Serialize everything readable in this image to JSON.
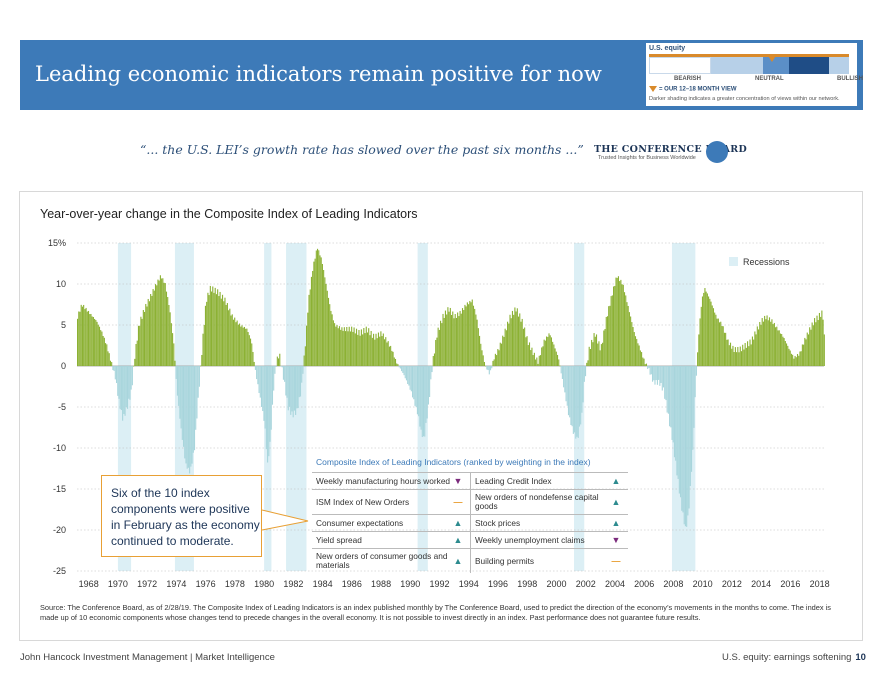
{
  "header": {
    "title": "Leading economic indicators remain positive for now",
    "equity_view": {
      "label": "U.S. equity",
      "bearish": "BEARISH",
      "neutral": "NEUTRAL",
      "bullish": "BULLISH",
      "view_note": "= OUR 12–18 MONTH VIEW",
      "shading_note": "Darker shading indicates a greater concentration of views within our network."
    }
  },
  "quote": "“... the U.S. LEI’s growth rate has slowed over the past six months ...”",
  "logo": {
    "name": "THE CONFERENCE BOARD",
    "tagline": "Trusted Insights for Business Worldwide"
  },
  "chart_data": {
    "type": "bar",
    "title": "Year-over-year change in the Composite Index of Leading Indicators",
    "ylim": [
      -25,
      15
    ],
    "yticks": [
      "15%",
      "10",
      "5",
      "0",
      "-5",
      "-10",
      "-15",
      "-20",
      "-25"
    ],
    "xticks": [
      "1968",
      "1970",
      "1972",
      "1974",
      "1976",
      "1978",
      "1980",
      "1982",
      "1984",
      "1986",
      "1988",
      "1990",
      "1992",
      "1994",
      "1996",
      "1998",
      "2000",
      "2002",
      "2004",
      "2006",
      "2008",
      "2010",
      "2012",
      "2014",
      "2016",
      "2018"
    ],
    "xlim": [
      1967.2,
      2018.3
    ],
    "grid": "horizontal dotted",
    "legend": {
      "label": "Recessions",
      "placement": "top-right"
    },
    "recessions": [
      [
        1970.0,
        1970.9
      ],
      [
        1973.9,
        1975.2
      ],
      [
        1980.0,
        1980.5
      ],
      [
        1981.5,
        1982.9
      ],
      [
        1990.5,
        1991.2
      ],
      [
        2001.2,
        2001.9
      ],
      [
        2007.9,
        2009.5
      ]
    ],
    "series": [
      {
        "colors": {
          "positive": "#8cb134",
          "negative": "#a8d5dc"
        },
        "points": [
          [
            1967.2,
            6
          ],
          [
            1967.5,
            7.5
          ],
          [
            1968.0,
            6.5
          ],
          [
            1968.5,
            5.5
          ],
          [
            1968.9,
            4
          ],
          [
            1969.2,
            2.5
          ],
          [
            1969.5,
            0.5
          ],
          [
            1969.8,
            -1.5
          ],
          [
            1970.0,
            -4
          ],
          [
            1970.3,
            -6.5
          ],
          [
            1970.6,
            -5
          ],
          [
            1970.9,
            -3
          ],
          [
            1971.1,
            1
          ],
          [
            1971.4,
            5
          ],
          [
            1971.8,
            7
          ],
          [
            1972.2,
            8.5
          ],
          [
            1972.6,
            10
          ],
          [
            1972.9,
            11
          ],
          [
            1973.2,
            10
          ],
          [
            1973.5,
            7
          ],
          [
            1973.8,
            2.5
          ],
          [
            1974.0,
            -3
          ],
          [
            1974.3,
            -8
          ],
          [
            1974.6,
            -12
          ],
          [
            1974.9,
            -13
          ],
          [
            1975.2,
            -10
          ],
          [
            1975.5,
            -3
          ],
          [
            1975.8,
            4
          ],
          [
            1976.0,
            8
          ],
          [
            1976.3,
            9.5
          ],
          [
            1976.8,
            9
          ],
          [
            1977.3,
            8
          ],
          [
            1977.8,
            6
          ],
          [
            1978.3,
            5
          ],
          [
            1978.8,
            4.5
          ],
          [
            1979.1,
            3
          ],
          [
            1979.4,
            -1
          ],
          [
            1979.7,
            -4
          ],
          [
            1980.0,
            -7
          ],
          [
            1980.2,
            -12
          ],
          [
            1980.4,
            -9
          ],
          [
            1980.6,
            -3
          ],
          [
            1980.8,
            0.5
          ],
          [
            1981.0,
            1.5
          ],
          [
            1981.3,
            -1.5
          ],
          [
            1981.6,
            -5
          ],
          [
            1981.9,
            -6
          ],
          [
            1982.2,
            -5.5
          ],
          [
            1982.5,
            -3
          ],
          [
            1982.8,
            3
          ],
          [
            1983.0,
            8
          ],
          [
            1983.3,
            12
          ],
          [
            1983.6,
            14.5
          ],
          [
            1983.9,
            13
          ],
          [
            1984.2,
            10
          ],
          [
            1984.5,
            7
          ],
          [
            1984.8,
            5
          ],
          [
            1985.3,
            4.5
          ],
          [
            1986.0,
            4.5
          ],
          [
            1986.5,
            4
          ],
          [
            1987.0,
            4.5
          ],
          [
            1987.5,
            3.5
          ],
          [
            1988.0,
            4
          ],
          [
            1988.4,
            3
          ],
          [
            1988.7,
            2
          ],
          [
            1989.0,
            0.5
          ],
          [
            1989.5,
            -1
          ],
          [
            1990.0,
            -3
          ],
          [
            1990.5,
            -6
          ],
          [
            1990.7,
            -8
          ],
          [
            1990.9,
            -9
          ],
          [
            1991.2,
            -5
          ],
          [
            1991.5,
            0.5
          ],
          [
            1991.8,
            4
          ],
          [
            1992.2,
            6
          ],
          [
            1992.6,
            7
          ],
          [
            1993.0,
            6
          ],
          [
            1993.4,
            6.5
          ],
          [
            1993.8,
            7.5
          ],
          [
            1994.2,
            8
          ],
          [
            1994.5,
            6
          ],
          [
            1994.8,
            2.5
          ],
          [
            1995.1,
            0
          ],
          [
            1995.4,
            -1
          ],
          [
            1995.7,
            1
          ],
          [
            1996.0,
            2
          ],
          [
            1996.4,
            4
          ],
          [
            1996.8,
            6
          ],
          [
            1997.2,
            7
          ],
          [
            1997.6,
            5.5
          ],
          [
            1998.0,
            3
          ],
          [
            1998.4,
            1.5
          ],
          [
            1998.7,
            0.5
          ],
          [
            1999.1,
            3
          ],
          [
            1999.5,
            4
          ],
          [
            1999.8,
            2.5
          ],
          [
            2000.1,
            1
          ],
          [
            2000.4,
            -2
          ],
          [
            2000.8,
            -6
          ],
          [
            2001.1,
            -8
          ],
          [
            2001.4,
            -9
          ],
          [
            2001.7,
            -6
          ],
          [
            2001.9,
            -1.5
          ],
          [
            2002.2,
            2
          ],
          [
            2002.6,
            4
          ],
          [
            2003.0,
            2
          ],
          [
            2003.4,
            6
          ],
          [
            2003.8,
            9
          ],
          [
            2004.1,
            11
          ],
          [
            2004.5,
            10
          ],
          [
            2004.9,
            7
          ],
          [
            2005.3,
            4
          ],
          [
            2005.7,
            2
          ],
          [
            2006.0,
            0.5
          ],
          [
            2006.3,
            -0.5
          ],
          [
            2006.6,
            -2
          ],
          [
            2007.0,
            -2
          ],
          [
            2007.3,
            -3
          ],
          [
            2007.6,
            -6
          ],
          [
            2007.9,
            -9
          ],
          [
            2008.2,
            -13
          ],
          [
            2008.5,
            -17
          ],
          [
            2008.8,
            -20
          ],
          [
            2009.0,
            -18
          ],
          [
            2009.3,
            -10
          ],
          [
            2009.5,
            -2
          ],
          [
            2009.7,
            4
          ],
          [
            2009.9,
            8
          ],
          [
            2010.1,
            9.5
          ],
          [
            2010.5,
            8
          ],
          [
            2010.9,
            6
          ],
          [
            2011.3,
            5
          ],
          [
            2011.7,
            3
          ],
          [
            2012.1,
            2
          ],
          [
            2012.5,
            2
          ],
          [
            2012.9,
            2.5
          ],
          [
            2013.3,
            3
          ],
          [
            2013.7,
            4.5
          ],
          [
            2014.0,
            5.5
          ],
          [
            2014.3,
            6
          ],
          [
            2014.7,
            5.5
          ],
          [
            2015.1,
            4.5
          ],
          [
            2015.5,
            3.5
          ],
          [
            2015.9,
            2
          ],
          [
            2016.2,
            1
          ],
          [
            2016.6,
            1.5
          ],
          [
            2016.9,
            3
          ],
          [
            2017.3,
            4.5
          ],
          [
            2017.6,
            5.5
          ],
          [
            2017.9,
            6
          ],
          [
            2018.1,
            6.5
          ],
          [
            2018.2,
            6
          ],
          [
            2018.3,
            3
          ]
        ]
      }
    ]
  },
  "callout": "Six of the 10 index components were positive in February as the economy continued to moderate.",
  "table": {
    "title": "Composite Index of Leading Indicators (ranked by weighting in the index)",
    "rows": [
      {
        "left": "Weekly manufacturing hours worked",
        "left_dir": "down",
        "right": "Leading Credit Index",
        "right_dir": "up"
      },
      {
        "left": "ISM Index of New Orders",
        "left_dir": "flat",
        "right": "New orders of nondefense capital goods",
        "right_dir": "up"
      },
      {
        "left": "Consumer expectations",
        "left_dir": "up",
        "right": "Stock prices",
        "right_dir": "up"
      },
      {
        "left": "Yield spread",
        "left_dir": "up",
        "right": "Weekly unemployment claims",
        "right_dir": "down"
      },
      {
        "left": "New orders of consumer goods and materials",
        "left_dir": "up",
        "right": "Building permits",
        "right_dir": "flat"
      }
    ]
  },
  "source": "Source: The Conference Board, as of 2/28/19. The Composite Index of Leading Indicators is an index published monthly by The Conference Board, used to predict the direction of the economy’s movements in the months to come. The index is made up of 10 economic components whose changes tend to precede changes in the overall economy. It is not possible to invest directly in an index. Past performance does not guarantee future results.",
  "footer": {
    "left": "John Hancock Investment Management | Market Intelligence",
    "right": "U.S. equity: earnings softening",
    "page": "10"
  }
}
